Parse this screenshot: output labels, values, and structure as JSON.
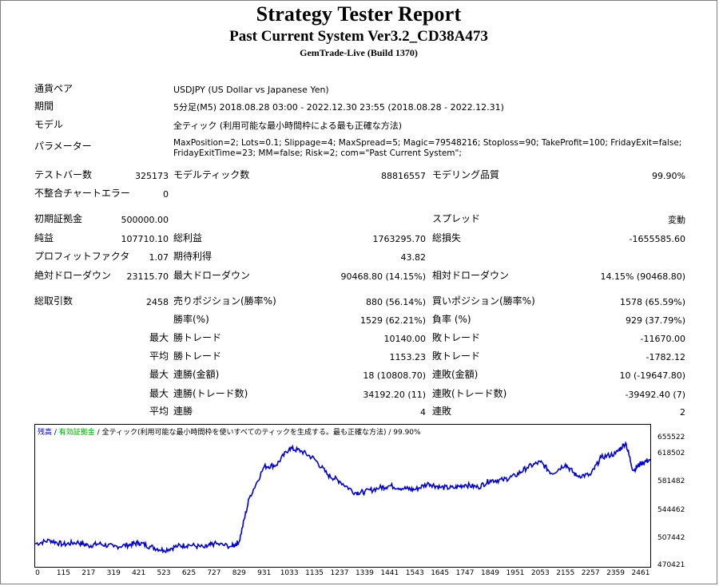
{
  "header": {
    "title": "Strategy Tester Report",
    "subtitle": "Past Current System Ver3.2_CD38A473",
    "server": "GemTrade-Live (Build 1370)"
  },
  "info": {
    "pair_label": "通貨ペア",
    "pair_value": "USDJPY (US Dollar vs Japanese Yen)",
    "period_label": "期間",
    "period_value": "5分足(M5) 2018.08.28 03:00 - 2022.12.30 23:55 (2018.08.28 - 2022.12.31)",
    "model_label": "モデル",
    "model_value": "全ティック (利用可能な最小時間枠による最も正確な方法)",
    "params_label": "パラメーター",
    "params_line1": "MaxPosition=2; Lots=0.1; Slippage=4; MaxSpread=5; Magic=79548216; Stoploss=90; TakeProfit=100; FridayExit=false;",
    "params_line2": "FridayExitTime=23; MM=false; Risk=2; com=\"Past Current System\";"
  },
  "stats": {
    "bars_label": "テストバー数",
    "bars_value": "325173",
    "ticks_label": "モデルティック数",
    "ticks_value": "88816557",
    "quality_label": "モデリング品質",
    "quality_value": "99.90%",
    "mismatch_label": "不整合チャートエラー",
    "mismatch_value": "0",
    "deposit_label": "初期証拠金",
    "deposit_value": "500000.00",
    "spread_label": "スプレッド",
    "spread_value": "変動",
    "net_label": "純益",
    "net_value": "107710.10",
    "gross_profit_label": "総利益",
    "gross_profit_value": "1763295.70",
    "gross_loss_label": "総損失",
    "gross_loss_value": "-1655585.60",
    "pf_label": "プロフィットファクタ",
    "pf_value": "1.07",
    "expected_label": "期待利得",
    "expected_value": "43.82",
    "abs_dd_label": "絶対ドローダウン",
    "abs_dd_value": "23115.70",
    "max_dd_label": "最大ドローダウン",
    "max_dd_value": "90468.80 (14.15%)",
    "rel_dd_label": "相対ドローダウン",
    "rel_dd_value": "14.15% (90468.80)",
    "total_label": "総取引数",
    "total_value": "2458",
    "short_label": "売りポジション(勝率%)",
    "short_value": "880 (56.14%)",
    "long_label": "買いポジション(勝率%)",
    "long_value": "1578 (65.59%)",
    "win_pct_label": "勝率(%)",
    "win_pct_value": "1529 (62.21%)",
    "loss_pct_label": "負率 (%)",
    "loss_pct_value": "929 (37.79%)",
    "max_label": "最大",
    "avg_label": "平均",
    "win_trade_label": "勝トレード",
    "loss_trade_label": "敗トレード",
    "max_win_trade": "10140.00",
    "max_loss_trade": "-11670.00",
    "avg_win_trade": "1153.23",
    "avg_loss_trade": "-1782.12",
    "consec_win_money_label": "連勝(金額)",
    "consec_win_money_value": "18 (10808.70)",
    "consec_loss_money_label": "連敗(金額)",
    "consec_loss_money_value": "10 (-19647.80)",
    "consec_win_trades_label": "連勝(トレード数)",
    "consec_win_trades_value": "34192.20 (11)",
    "consec_loss_trades_label": "連敗(トレード数)",
    "consec_loss_trades_value": "-39492.40 (7)",
    "avg_consec_win_label": "連勝",
    "avg_consec_win_value": "4",
    "avg_consec_loss_label": "連敗",
    "avg_consec_loss_value": "2"
  },
  "chart_legend": {
    "balance": "残高",
    "sep1": " / ",
    "equity": "有効証拠金",
    "sep2": " / ",
    "rest": "全ティック(利用可能な最小時間枠を使いすべてのティックを生成する。最も正確な方法) / 99.90%"
  },
  "chart_data": {
    "type": "line",
    "series": [
      {
        "name": "残高",
        "color": "#0000c8",
        "x": [
          0,
          60,
          115,
          170,
          217,
          260,
          319,
          380,
          421,
          470,
          523,
          580,
          625,
          690,
          727,
          800,
          829,
          870,
          931,
          980,
          1033,
          1080,
          1135,
          1190,
          1237,
          1300,
          1339,
          1400,
          1441,
          1500,
          1543,
          1600,
          1645,
          1700,
          1747,
          1800,
          1849,
          1900,
          1951,
          2000,
          2053,
          2100,
          2155,
          2200,
          2257,
          2300,
          2359,
          2400,
          2430,
          2461,
          2500
        ],
        "y": [
          500500,
          505000,
          499500,
          502500,
          498000,
          500500,
          496500,
          499000,
          502000,
          496500,
          492000,
          497500,
          499000,
          495500,
          500500,
          497000,
          503000,
          560000,
          601000,
          603000,
          625000,
          621500,
          611000,
          590000,
          582000,
          567000,
          568000,
          573500,
          576000,
          572500,
          571000,
          579000,
          574000,
          573000,
          577500,
          574000,
          583000,
          583500,
          589000,
          600000,
          607000,
          592000,
          604000,
          589000,
          590000,
          613000,
          618000,
          632000,
          596000,
          605000,
          610500
        ]
      }
    ],
    "y_ticks": [
      "655522",
      "618502",
      "581482",
      "544462",
      "507442",
      "470421"
    ],
    "x_ticks": [
      "0",
      "115",
      "217",
      "319",
      "421",
      "523",
      "625",
      "727",
      "829",
      "931",
      "1033",
      "1135",
      "1237",
      "1339",
      "1441",
      "1543",
      "1645",
      "1747",
      "1849",
      "1951",
      "2053",
      "2155",
      "2257",
      "2359",
      "2461"
    ],
    "ylim": [
      470421,
      655522
    ],
    "xlim": [
      0,
      2500
    ]
  }
}
